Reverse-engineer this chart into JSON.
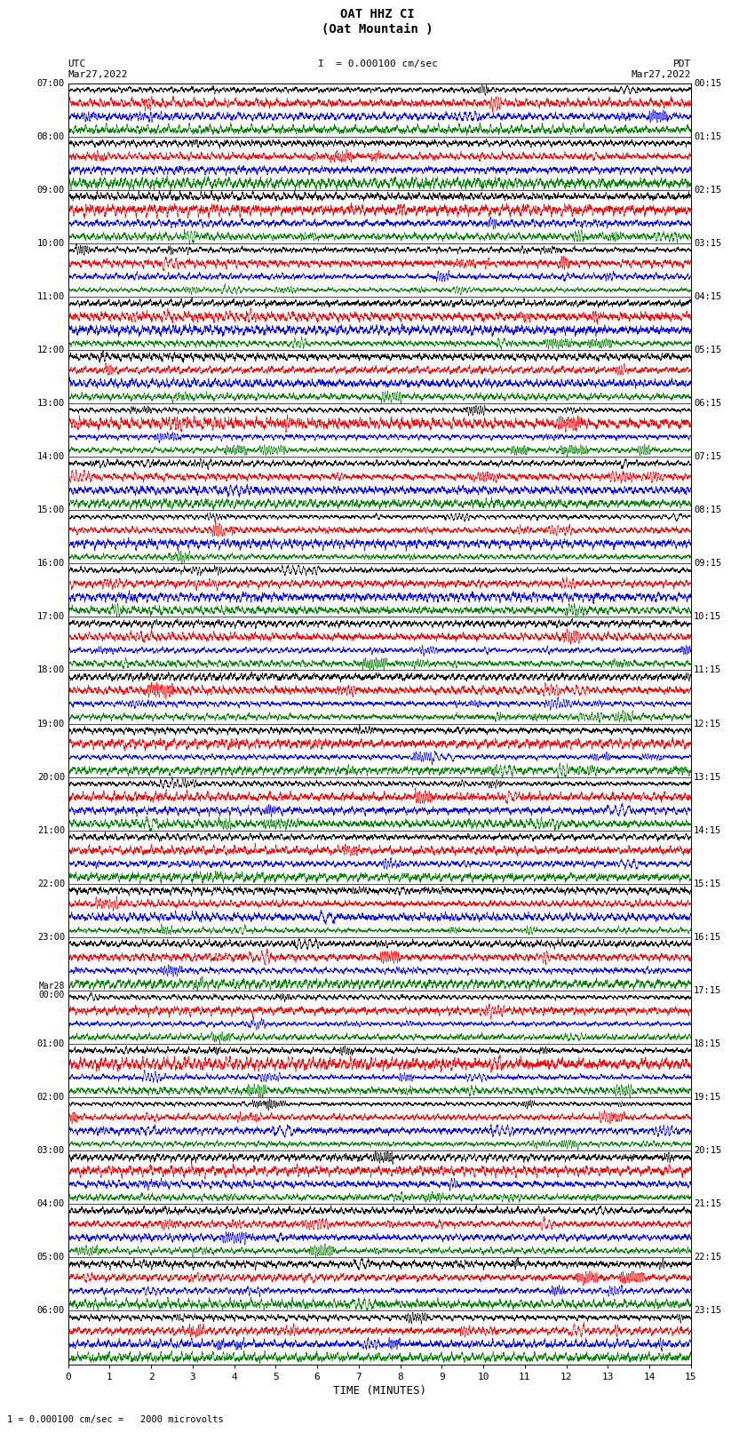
{
  "title_line1": "OAT HHZ CI",
  "title_line2": "(Oat Mountain )",
  "scale_text": "= 0.000100 cm/sec",
  "bottom_scale_text": "= 0.000100 cm/sec =   2000 microvolts",
  "xlabel": "TIME (MINUTES)",
  "utc_label": "UTC",
  "utc_date": "Mar27,2022",
  "pdt_label": "PDT",
  "pdt_date": "Mar27,2022",
  "xmin": 0,
  "xmax": 15,
  "xticks": [
    0,
    1,
    2,
    3,
    4,
    5,
    6,
    7,
    8,
    9,
    10,
    11,
    12,
    13,
    14,
    15
  ],
  "bg_color": "#ffffff",
  "trace_colors": [
    "black",
    "red",
    "blue",
    "green"
  ],
  "left_times": [
    "07:00",
    "08:00",
    "09:00",
    "10:00",
    "11:00",
    "12:00",
    "13:00",
    "14:00",
    "15:00",
    "16:00",
    "17:00",
    "18:00",
    "19:00",
    "20:00",
    "21:00",
    "22:00",
    "23:00",
    "00:00",
    "01:00",
    "02:00",
    "03:00",
    "04:00",
    "05:00",
    "06:00"
  ],
  "right_times": [
    "00:15",
    "01:15",
    "02:15",
    "03:15",
    "04:15",
    "05:15",
    "06:15",
    "07:15",
    "08:15",
    "09:15",
    "10:15",
    "11:15",
    "12:15",
    "13:15",
    "14:15",
    "15:15",
    "16:15",
    "17:15",
    "18:15",
    "19:15",
    "20:15",
    "21:15",
    "22:15",
    "23:15"
  ],
  "mar28_row": 17,
  "n_rows": 96,
  "fig_width": 8.5,
  "fig_height": 16.13,
  "dpi": 100
}
